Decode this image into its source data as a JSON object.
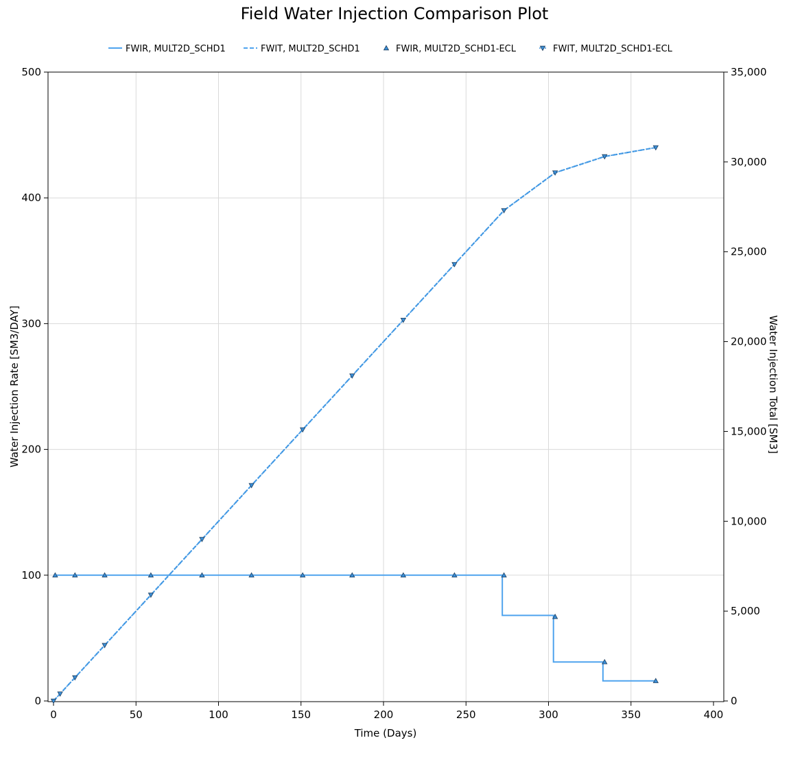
{
  "chart_data": {
    "type": "line",
    "title": "Field Water Injection Comparison Plot",
    "xlabel": "Time (Days)",
    "ylabel_left": "Water Injection Rate [SM3/DAY]",
    "ylabel_right": "Water Injection Total [SM3]",
    "xlim": [
      0,
      400
    ],
    "ylim_left": [
      0,
      500
    ],
    "ylim_right": [
      0,
      35000
    ],
    "x_ticks": [
      "0",
      "50",
      "100",
      "150",
      "200",
      "250",
      "300",
      "350",
      "400"
    ],
    "y_left_ticks": [
      "0",
      "100",
      "200",
      "300",
      "400",
      "500"
    ],
    "y_right_ticks": [
      "0",
      "5,000",
      "10,000",
      "15,000",
      "20,000",
      "25,000",
      "30,000",
      "35,000"
    ],
    "grid": true,
    "legend_position": "top",
    "series": [
      {
        "name": "FWIR, MULT2D_SCHD1",
        "axis": "left",
        "style": "step-solid",
        "color": "#4ea3ee",
        "x": [
          0,
          272,
          303,
          333,
          365
        ],
        "y": [
          100,
          68,
          31,
          16,
          16
        ]
      },
      {
        "name": "FWIT, MULT2D_SCHD1",
        "axis": "right",
        "style": "dashed",
        "color": "#4ea3ee",
        "x": [
          0,
          4,
          13,
          31,
          59,
          90,
          120,
          151,
          181,
          212,
          243,
          273,
          304,
          334,
          365
        ],
        "y": [
          0,
          400,
          1300,
          3100,
          5900,
          9000,
          12000,
          15100,
          18100,
          21200,
          24300,
          27300,
          29400,
          30300,
          30800
        ]
      },
      {
        "name": "FWIR, MULT2D_SCHD1-ECL",
        "axis": "left",
        "style": "markers-up",
        "color": "#3a8fd8",
        "x": [
          1,
          13,
          31,
          59,
          90,
          120,
          151,
          181,
          212,
          243,
          273,
          304,
          334,
          365
        ],
        "y": [
          100,
          100,
          100,
          100,
          100,
          100,
          100,
          100,
          100,
          100,
          100,
          67,
          31,
          16
        ]
      },
      {
        "name": "FWIT, MULT2D_SCHD1-ECL",
        "axis": "right",
        "style": "dotted-markers-down",
        "color": "#3a8fd8",
        "x": [
          0,
          4,
          13,
          31,
          59,
          90,
          120,
          151,
          181,
          212,
          243,
          273,
          304,
          334,
          365
        ],
        "y": [
          0,
          400,
          1300,
          3100,
          5900,
          9000,
          12000,
          15100,
          18100,
          21200,
          24300,
          27300,
          29400,
          30300,
          30800
        ]
      }
    ]
  }
}
